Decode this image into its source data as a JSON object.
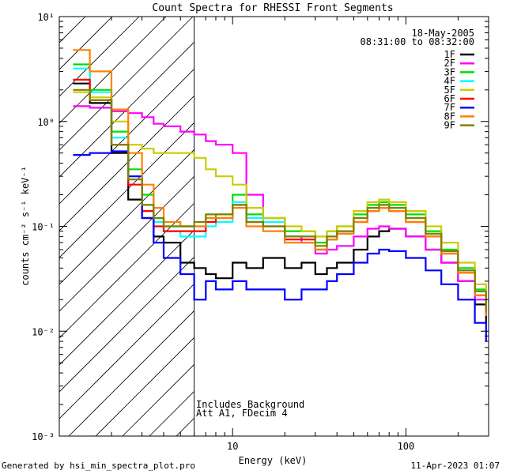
{
  "chart_data": {
    "type": "line",
    "title": "Count Spectra for RHESSI Front Segments",
    "xlabel": "Energy (keV)",
    "ylabel": "counts cm⁻² s⁻¹ keV⁻¹",
    "xscale": "log",
    "yscale": "log",
    "xlim": [
      1,
      300
    ],
    "ylim": [
      0.001,
      10
    ],
    "x_ticks": [
      10,
      100
    ],
    "x_tick_labels": [
      "10",
      "100"
    ],
    "y_tick_labels": [
      "10⁻³",
      "10⁻²",
      "10⁻¹",
      "10⁰",
      "10¹"
    ],
    "legend_position": "top-right",
    "legend_header": [
      "18-May-2005",
      "08:31:00 to 08:32:00"
    ],
    "annotations": [
      "Includes Background",
      "Att A1, FDecim 4"
    ],
    "hatched_region": [
      1,
      6
    ],
    "series": [
      {
        "name": "1F",
        "color": "#000000",
        "x": [
          1.2,
          1.5,
          2,
          2.5,
          3,
          3.5,
          4,
          5,
          6,
          7,
          8,
          10,
          12,
          15,
          20,
          25,
          30,
          35,
          40,
          50,
          60,
          70,
          80,
          100,
          130,
          160,
          200,
          250,
          290
        ],
        "values": [
          2.3,
          1.5,
          0.5,
          0.18,
          0.12,
          0.08,
          0.07,
          0.045,
          0.04,
          0.035,
          0.032,
          0.045,
          0.04,
          0.05,
          0.04,
          0.045,
          0.035,
          0.04,
          0.045,
          0.06,
          0.08,
          0.09,
          0.095,
          0.08,
          0.06,
          0.045,
          0.03,
          0.018,
          0.012
        ]
      },
      {
        "name": "2F",
        "color": "#ff00ff",
        "x": [
          1.2,
          1.5,
          2,
          2.5,
          3,
          3.5,
          4,
          5,
          6,
          7,
          8,
          10,
          12,
          15,
          20,
          25,
          30,
          35,
          40,
          50,
          60,
          70,
          80,
          100,
          130,
          160,
          200,
          250,
          290
        ],
        "values": [
          1.4,
          1.35,
          1.25,
          1.2,
          1.1,
          0.95,
          0.9,
          0.8,
          0.75,
          0.65,
          0.6,
          0.5,
          0.2,
          0.12,
          0.08,
          0.07,
          0.055,
          0.06,
          0.065,
          0.08,
          0.095,
          0.1,
          0.095,
          0.08,
          0.06,
          0.045,
          0.03,
          0.02,
          0.014
        ]
      },
      {
        "name": "3F",
        "color": "#00dd00",
        "x": [
          1.2,
          1.5,
          2,
          2.5,
          3,
          3.5,
          4,
          5,
          6,
          7,
          8,
          10,
          12,
          15,
          20,
          25,
          30,
          35,
          40,
          50,
          60,
          70,
          80,
          100,
          130,
          160,
          200,
          250,
          290
        ],
        "values": [
          3.5,
          2.0,
          0.8,
          0.35,
          0.2,
          0.12,
          0.1,
          0.1,
          0.1,
          0.12,
          0.13,
          0.2,
          0.13,
          0.12,
          0.09,
          0.09,
          0.07,
          0.09,
          0.1,
          0.13,
          0.16,
          0.17,
          0.16,
          0.13,
          0.09,
          0.06,
          0.04,
          0.025,
          0.016
        ]
      },
      {
        "name": "4F",
        "color": "#00ffff",
        "x": [
          1.2,
          1.5,
          2,
          2.5,
          3,
          3.5,
          4,
          5,
          6,
          7,
          8,
          10,
          12,
          15,
          20,
          25,
          30,
          35,
          40,
          50,
          60,
          70,
          80,
          100,
          130,
          160,
          200,
          250,
          290
        ],
        "values": [
          3.2,
          1.9,
          0.7,
          0.3,
          0.16,
          0.11,
          0.09,
          0.08,
          0.08,
          0.1,
          0.11,
          0.17,
          0.12,
          0.11,
          0.08,
          0.08,
          0.06,
          0.08,
          0.09,
          0.12,
          0.15,
          0.16,
          0.15,
          0.12,
          0.085,
          0.058,
          0.038,
          0.024,
          0.015
        ]
      },
      {
        "name": "5F",
        "color": "#cccc00",
        "x": [
          1.2,
          1.5,
          2,
          2.5,
          3,
          3.5,
          4,
          5,
          6,
          7,
          8,
          10,
          12,
          15,
          20,
          25,
          30,
          35,
          40,
          50,
          60,
          70,
          80,
          100,
          130,
          160,
          200,
          250,
          290
        ],
        "values": [
          1.9,
          1.7,
          1.0,
          0.6,
          0.55,
          0.5,
          0.5,
          0.5,
          0.45,
          0.35,
          0.3,
          0.25,
          0.15,
          0.12,
          0.1,
          0.09,
          0.08,
          0.09,
          0.1,
          0.14,
          0.17,
          0.18,
          0.17,
          0.14,
          0.1,
          0.07,
          0.045,
          0.028,
          0.018
        ]
      },
      {
        "name": "6F",
        "color": "#ff0000",
        "x": [
          1.2,
          1.5,
          2,
          2.5,
          3,
          3.5,
          4,
          5,
          6,
          7,
          8,
          10,
          12,
          15,
          20,
          25,
          30,
          35,
          40,
          50,
          60,
          70,
          80,
          100,
          130,
          160,
          200,
          250,
          290
        ],
        "values": [
          2.5,
          1.6,
          0.6,
          0.25,
          0.14,
          0.1,
          0.09,
          0.09,
          0.09,
          0.11,
          0.12,
          0.16,
          0.11,
          0.1,
          0.075,
          0.075,
          0.06,
          0.075,
          0.085,
          0.11,
          0.14,
          0.15,
          0.14,
          0.11,
          0.08,
          0.055,
          0.036,
          0.022,
          0.014
        ]
      },
      {
        "name": "7F",
        "color": "#0000ff",
        "x": [
          1.2,
          1.5,
          2,
          2.5,
          3,
          3.5,
          4,
          5,
          6,
          7,
          8,
          10,
          12,
          15,
          20,
          25,
          30,
          35,
          40,
          50,
          60,
          70,
          80,
          100,
          130,
          160,
          200,
          250,
          290
        ],
        "values": [
          0.48,
          0.5,
          0.52,
          0.3,
          0.12,
          0.07,
          0.05,
          0.035,
          0.02,
          0.03,
          0.025,
          0.03,
          0.025,
          0.025,
          0.02,
          0.025,
          0.025,
          0.03,
          0.035,
          0.045,
          0.055,
          0.06,
          0.058,
          0.05,
          0.038,
          0.028,
          0.02,
          0.012,
          0.008
        ]
      },
      {
        "name": "8F",
        "color": "#ff8000",
        "x": [
          1.2,
          1.5,
          2,
          2.5,
          3,
          3.5,
          4,
          5,
          6,
          7,
          8,
          10,
          12,
          15,
          20,
          25,
          30,
          35,
          40,
          50,
          60,
          70,
          80,
          100,
          130,
          160,
          200,
          250,
          290
        ],
        "values": [
          4.8,
          3.0,
          1.3,
          0.5,
          0.25,
          0.15,
          0.11,
          0.1,
          0.1,
          0.12,
          0.12,
          0.15,
          0.1,
          0.09,
          0.07,
          0.07,
          0.06,
          0.075,
          0.085,
          0.11,
          0.14,
          0.15,
          0.14,
          0.11,
          0.08,
          0.055,
          0.036,
          0.022,
          0.014
        ]
      },
      {
        "name": "9F",
        "color": "#808000",
        "x": [
          1.2,
          1.5,
          2,
          2.5,
          3,
          3.5,
          4,
          5,
          6,
          7,
          8,
          10,
          12,
          15,
          20,
          25,
          30,
          35,
          40,
          50,
          60,
          70,
          80,
          100,
          130,
          160,
          200,
          250,
          290
        ],
        "values": [
          2.0,
          1.6,
          0.6,
          0.28,
          0.16,
          0.12,
          0.1,
          0.1,
          0.11,
          0.13,
          0.13,
          0.16,
          0.11,
          0.1,
          0.08,
          0.08,
          0.065,
          0.08,
          0.09,
          0.12,
          0.15,
          0.16,
          0.15,
          0.12,
          0.085,
          0.058,
          0.038,
          0.024,
          0.015
        ]
      }
    ]
  },
  "footer": {
    "generated_by": "Generated by hsi_min_spectra_plot.pro",
    "timestamp": "11-Apr-2023 01:07"
  }
}
